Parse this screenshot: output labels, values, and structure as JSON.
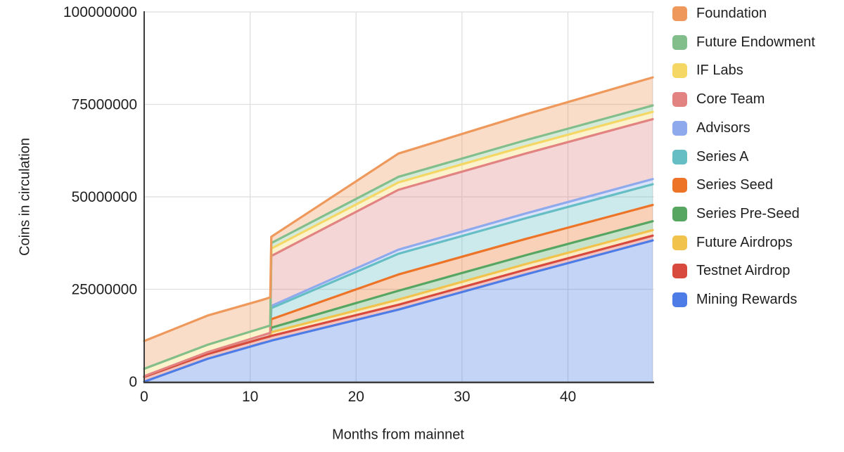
{
  "chart_data": {
    "type": "area",
    "stacked": true,
    "title": "",
    "xlabel": "Months from mainnet",
    "ylabel": "Coins in circulation",
    "xlim": [
      0,
      48
    ],
    "ylim": [
      0,
      100000000
    ],
    "grid": true,
    "x_ticks": [
      {
        "v": 0,
        "label": "0"
      },
      {
        "v": 10,
        "label": "10"
      },
      {
        "v": 20,
        "label": "20"
      },
      {
        "v": 30,
        "label": "30"
      },
      {
        "v": 40,
        "label": "40"
      }
    ],
    "y_ticks": [
      {
        "v": 0,
        "label": "0"
      },
      {
        "v": 25000000,
        "label": "25000000"
      },
      {
        "v": 50000000,
        "label": "50000000"
      },
      {
        "v": 75000000,
        "label": "75000000"
      },
      {
        "v": 100000000,
        "label": "100000000"
      }
    ],
    "months": [
      0,
      6,
      11,
      11.9,
      12,
      24,
      36,
      48
    ],
    "series": [
      {
        "name": "Mining Rewards",
        "color": "#4D7CE6",
        "values": [
          0,
          6200000,
          10300000,
          11000000,
          11100000,
          19500000,
          29000000,
          38200000
        ]
      },
      {
        "name": "Testnet Airdrop",
        "color": "#D94A3E",
        "values": [
          1300000,
          1300000,
          1300000,
          1300000,
          1300000,
          1300000,
          1300000,
          1300000
        ]
      },
      {
        "name": "Future Airdrops",
        "color": "#F2C34C",
        "values": [
          0,
          0,
          0,
          0,
          1000000,
          1400000,
          1500000,
          1500000
        ]
      },
      {
        "name": "Series Pre-Seed",
        "color": "#56A661",
        "values": [
          0,
          0,
          0,
          0,
          1200000,
          2400000,
          2400000,
          2400000
        ]
      },
      {
        "name": "Series Seed",
        "color": "#ED7327",
        "values": [
          0,
          0,
          0,
          0,
          2300000,
          4400000,
          4400000,
          4400000
        ]
      },
      {
        "name": "Series A",
        "color": "#65BEC4",
        "values": [
          0,
          0,
          0,
          0,
          3000000,
          5600000,
          5600000,
          5600000
        ]
      },
      {
        "name": "Advisors",
        "color": "#8EAAEC",
        "values": [
          0,
          0,
          0,
          0,
          600000,
          1100000,
          1300000,
          1400000
        ]
      },
      {
        "name": "Core Team",
        "color": "#E28382",
        "values": [
          200000,
          500000,
          800000,
          900000,
          13500000,
          16200000,
          16200000,
          16200000
        ]
      },
      {
        "name": "IF Labs",
        "color": "#F5D765",
        "values": [
          2000000,
          2000000,
          2000000,
          2000000,
          2000000,
          2000000,
          2000000,
          2000000
        ]
      },
      {
        "name": "Future Endowment",
        "color": "#82BE8C",
        "values": [
          0,
          0,
          0,
          0,
          1500000,
          1500000,
          1600000,
          1700000
        ]
      },
      {
        "name": "Foundation",
        "color": "#EF985B",
        "values": [
          7500000,
          7900000,
          7600000,
          7600000,
          1700000,
          6300000,
          7000000,
          7600000
        ]
      }
    ],
    "legend": {
      "position": "right",
      "items": [
        "Foundation",
        "Future Endowment",
        "IF Labs",
        "Core Team",
        "Advisors",
        "Series A",
        "Series Seed",
        "Series Pre-Seed",
        "Future Airdrops",
        "Testnet Airdrop",
        "Mining Rewards"
      ]
    }
  },
  "style": {
    "background": "#ffffff",
    "grid_color": "#dedede",
    "axis_color": "#3c3c3c",
    "text_color": "#1f1f1f",
    "fill_opacity": 0.33
  }
}
